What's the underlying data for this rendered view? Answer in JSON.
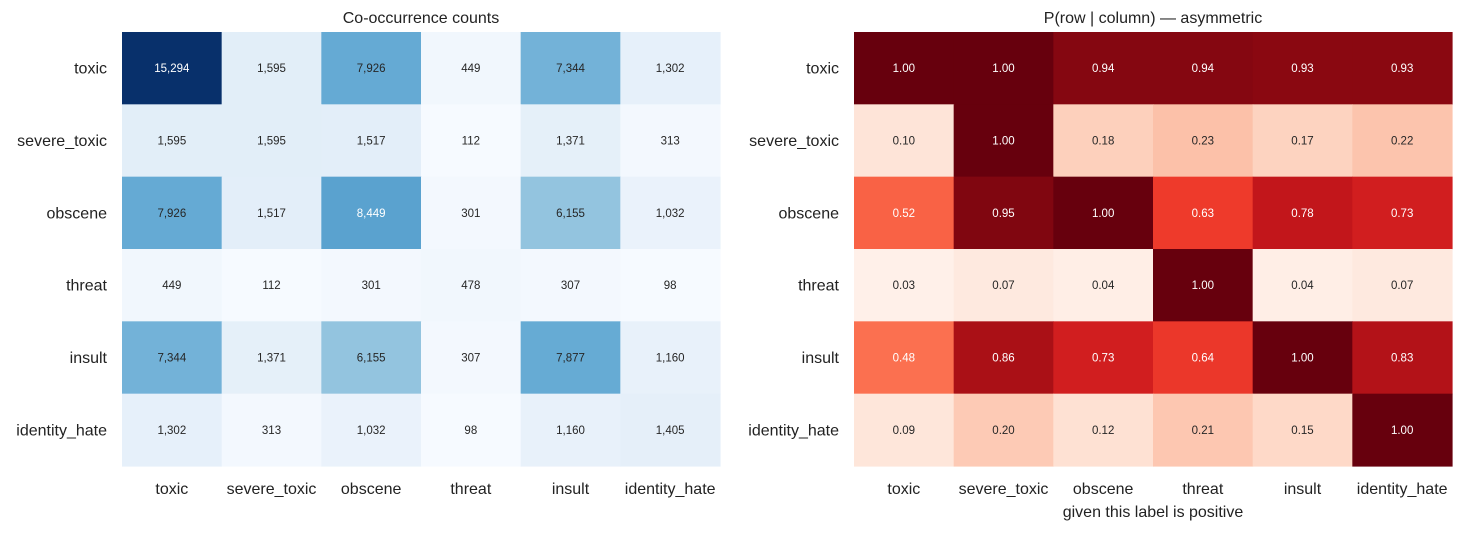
{
  "chart_data": [
    {
      "type": "heatmap",
      "title": "Co-occurrence counts",
      "xlabel": "",
      "ylabel": "",
      "colormap": "Blues",
      "value_range": [
        0,
        15294
      ],
      "row_labels": [
        "toxic",
        "severe_toxic",
        "obscene",
        "threat",
        "insult",
        "identity_hate"
      ],
      "col_labels": [
        "toxic",
        "severe_toxic",
        "obscene",
        "threat",
        "insult",
        "identity_hate"
      ],
      "values": [
        [
          15294,
          1595,
          7926,
          449,
          7344,
          1302
        ],
        [
          1595,
          1595,
          1517,
          112,
          1371,
          313
        ],
        [
          7926,
          1517,
          8449,
          301,
          6155,
          1032
        ],
        [
          449,
          112,
          301,
          478,
          307,
          98
        ],
        [
          7344,
          1371,
          6155,
          307,
          7877,
          1160
        ],
        [
          1302,
          313,
          1032,
          98,
          1160,
          1405
        ]
      ],
      "cell_labels": [
        [
          "15,294",
          "1,595",
          "7,926",
          "449",
          "7,344",
          "1,302"
        ],
        [
          "1,595",
          "1,595",
          "1,517",
          "112",
          "1,371",
          "313"
        ],
        [
          "7,926",
          "1,517",
          "8,449",
          "301",
          "6,155",
          "1,032"
        ],
        [
          "449",
          "112",
          "301",
          "478",
          "307",
          "98"
        ],
        [
          "7,344",
          "1,371",
          "6,155",
          "307",
          "7,877",
          "1,160"
        ],
        [
          "1,302",
          "313",
          "1,032",
          "98",
          "1,160",
          "1,405"
        ]
      ]
    },
    {
      "type": "heatmap",
      "title": "P(row | column) — asymmetric",
      "xlabel": "given this label is positive",
      "ylabel": "",
      "colormap": "Reds",
      "value_range": [
        0,
        1
      ],
      "row_labels": [
        "toxic",
        "severe_toxic",
        "obscene",
        "threat",
        "insult",
        "identity_hate"
      ],
      "col_labels": [
        "toxic",
        "severe_toxic",
        "obscene",
        "threat",
        "insult",
        "identity_hate"
      ],
      "values": [
        [
          1.0,
          1.0,
          0.94,
          0.94,
          0.93,
          0.93
        ],
        [
          0.1,
          1.0,
          0.18,
          0.23,
          0.17,
          0.22
        ],
        [
          0.52,
          0.95,
          1.0,
          0.63,
          0.78,
          0.73
        ],
        [
          0.03,
          0.07,
          0.04,
          1.0,
          0.04,
          0.07
        ],
        [
          0.48,
          0.86,
          0.73,
          0.64,
          1.0,
          0.83
        ],
        [
          0.09,
          0.2,
          0.12,
          0.21,
          0.15,
          1.0
        ]
      ],
      "cell_labels": [
        [
          "1.00",
          "1.00",
          "0.94",
          "0.94",
          "0.93",
          "0.93"
        ],
        [
          "0.10",
          "1.00",
          "0.18",
          "0.23",
          "0.17",
          "0.22"
        ],
        [
          "0.52",
          "0.95",
          "1.00",
          "0.63",
          "0.78",
          "0.73"
        ],
        [
          "0.03",
          "0.07",
          "0.04",
          "1.00",
          "0.04",
          "0.07"
        ],
        [
          "0.48",
          "0.86",
          "0.73",
          "0.64",
          "1.00",
          "0.83"
        ],
        [
          "0.09",
          "0.20",
          "0.12",
          "0.21",
          "0.15",
          "1.00"
        ]
      ]
    }
  ]
}
